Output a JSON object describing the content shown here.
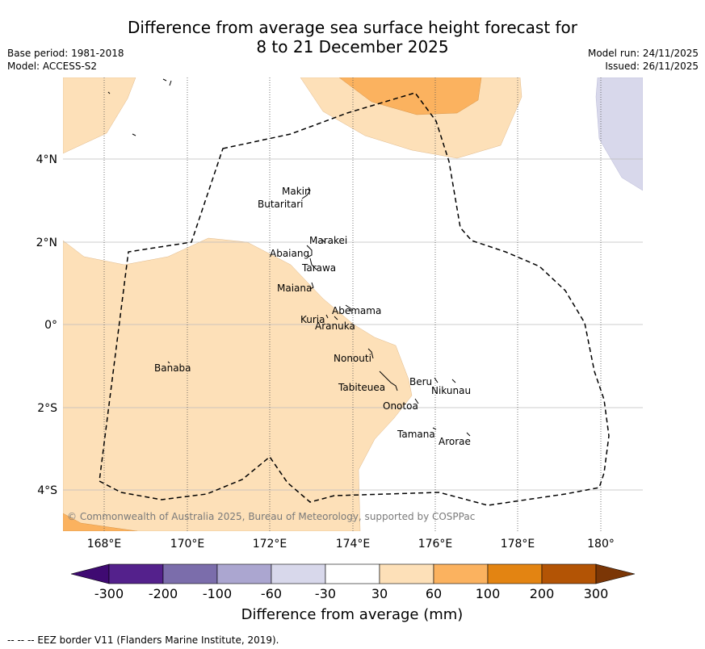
{
  "title_line1": "Difference from average sea surface height forecast for",
  "title_line2": "8 to 21 December 2025",
  "base_period": "Base period: 1981-2018",
  "model": "Model: ACCESS-S2",
  "model_run": "Model run: 24/11/2025",
  "issued": "Issued: 26/11/2025",
  "copyright": "© Commonwealth of Australia 2025, Bureau of Meteorology, supported by COSPPac",
  "lat_labels": [
    "4°N",
    "2°N",
    "0°",
    "2°S",
    "4°S"
  ],
  "lon_labels": [
    "168°E",
    "170°E",
    "172°E",
    "174°E",
    "176°E",
    "178°E",
    "180°"
  ],
  "places": {
    "makin": "Makin",
    "butaritari": "Butaritari",
    "marakei": "Marakei",
    "abaiang": "Abaiang",
    "tarawa": "Tarawa",
    "maiana": "Maiana",
    "abemama": "Abemama",
    "kuria": "Kuria",
    "aranuka": "Aranuka",
    "banaba": "Banaba",
    "nonouti": "Nonouti",
    "beru": "Beru",
    "nikunau": "Nikunau",
    "tabiteuea": "Tabiteuea",
    "onotoa": "Onotoa",
    "tamana": "Tamana",
    "arorae": "Arorae"
  },
  "colorbar": {
    "ticks": [
      "-300",
      "-200",
      "-100",
      "-60",
      "-30",
      "30",
      "60",
      "100",
      "200",
      "300"
    ],
    "colors": [
      "#3f0a72",
      "#54218c",
      "#7b6dab",
      "#aba6d0",
      "#d8d8eb",
      "#ffffff",
      "#fde0b8",
      "#fbb25f",
      "#e38412",
      "#b35405",
      "#7b3606"
    ],
    "label": "Difference from average (mm)"
  },
  "footnote": "--  --  -- EEZ border V11 (Flanders Marine Institute, 2019).",
  "legend_colors": {
    "light_orange": "#fde0b8",
    "orange": "#fbb25f",
    "light_purple": "#d8d8eb"
  }
}
